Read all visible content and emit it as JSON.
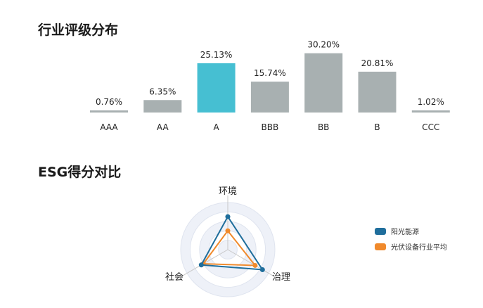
{
  "chart_data": [
    {
      "type": "bar",
      "title": "行业评级分布",
      "categories": [
        "AAA",
        "AA",
        "A",
        "BBB",
        "BB",
        "B",
        "CCC"
      ],
      "values": [
        0.76,
        6.35,
        25.13,
        15.74,
        30.2,
        20.81,
        1.02
      ],
      "data_labels": [
        "0.76%",
        "6.35%",
        "25.13%",
        "15.74%",
        "30.20%",
        "20.81%",
        "1.02%"
      ],
      "highlight": "A",
      "colors": {
        "default": "#a8b0b1",
        "highlight": "#46bfd2"
      },
      "ylim": [
        0,
        32
      ]
    },
    {
      "type": "radar",
      "title": "ESG得分对比",
      "axes": [
        "环境",
        "治理",
        "社会"
      ],
      "series": [
        {
          "name": "阳光能源",
          "values": [
            70,
            85,
            65
          ],
          "color": "#1f6e9c"
        },
        {
          "name": "光伏设备行业平均",
          "values": [
            40,
            67,
            60
          ],
          "color": "#f08a2c"
        }
      ],
      "range": [
        0,
        100
      ],
      "legend": "right"
    }
  ]
}
